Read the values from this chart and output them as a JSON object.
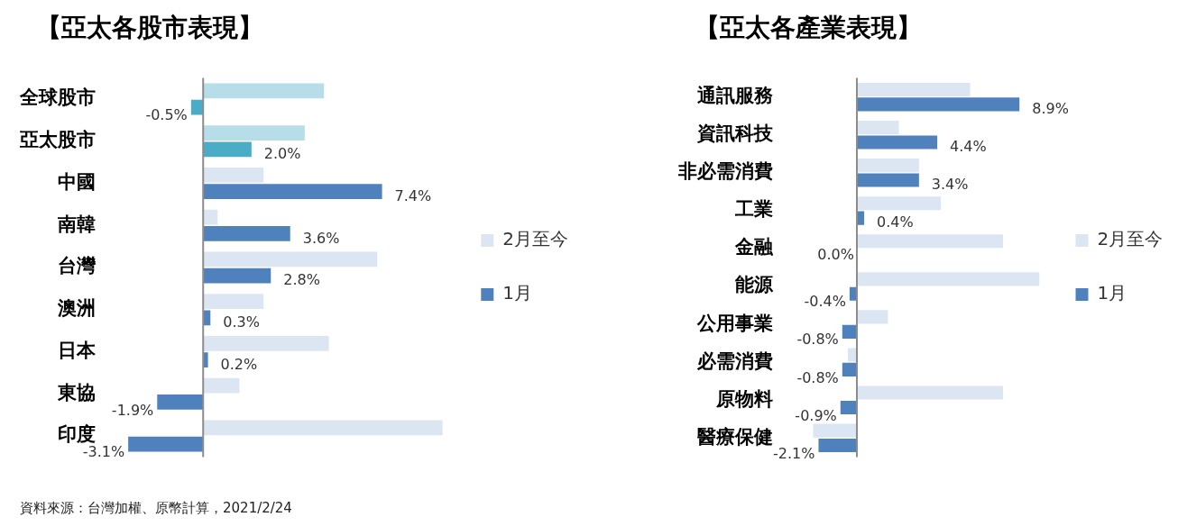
{
  "chart_data": [
    {
      "type": "bar",
      "orientation": "horizontal",
      "title": "【亞太各股市表現】",
      "categories": [
        "全球股市",
        "亞太股市",
        "中國",
        "南韓",
        "台灣",
        "澳洲",
        "日本",
        "東協",
        "印度"
      ],
      "tick_labels": "y",
      "grid": false,
      "legend": "right",
      "series": [
        {
          "name": "2月至今",
          "color": "#dce6f2",
          "colors": [
            "#b7dde8",
            "#b7dde8",
            "#dce6f2",
            "#dce6f2",
            "#dce6f2",
            "#dce6f2",
            "#dce6f2",
            "#dce6f2",
            "#dce6f2"
          ],
          "values": [
            5.0,
            4.2,
            2.5,
            0.6,
            7.2,
            2.5,
            5.2,
            1.5,
            9.9
          ]
        },
        {
          "name": "1月",
          "color": "#4f81bd",
          "colors": [
            "#4bacc6",
            "#4bacc6",
            "#4f81bd",
            "#4f81bd",
            "#4f81bd",
            "#4f81bd",
            "#4f81bd",
            "#4f81bd",
            "#4f81bd"
          ],
          "values": [
            -0.5,
            2.0,
            7.4,
            3.6,
            2.8,
            0.3,
            0.2,
            -1.9,
            -3.1
          ],
          "value_labels": [
            "-0.5%",
            "2.0%",
            "7.4%",
            "3.6%",
            "2.8%",
            "0.3%",
            "0.2%",
            "-1.9%",
            "-3.1%"
          ]
        }
      ],
      "annotations": [
        "資料來源：台灣加權、原幣計算，2021/2/24"
      ]
    },
    {
      "type": "bar",
      "orientation": "horizontal",
      "title": "【亞太各產業表現】",
      "categories": [
        "通訊服務",
        "資訊科技",
        "非必需消費",
        "工業",
        "金融",
        "能源",
        "公用事業",
        "必需消費",
        "原物料",
        "醫療保健"
      ],
      "tick_labels": "y",
      "grid": false,
      "legend": "right",
      "series": [
        {
          "name": "2月至今",
          "color": "#dce6f2",
          "values": [
            6.2,
            2.3,
            3.4,
            4.6,
            8.0,
            10.0,
            1.7,
            -0.5,
            8.0,
            -2.4
          ]
        },
        {
          "name": "1月",
          "color": "#4f81bd",
          "values": [
            8.9,
            4.4,
            3.4,
            0.4,
            0.0,
            -0.4,
            -0.8,
            -0.8,
            -0.9,
            -2.1
          ],
          "value_labels": [
            "8.9%",
            "4.4%",
            "3.4%",
            "0.4%",
            "0.0%",
            "-0.4%",
            "-0.8%",
            "-0.8%",
            "-0.9%",
            "-2.1%"
          ]
        }
      ]
    }
  ]
}
